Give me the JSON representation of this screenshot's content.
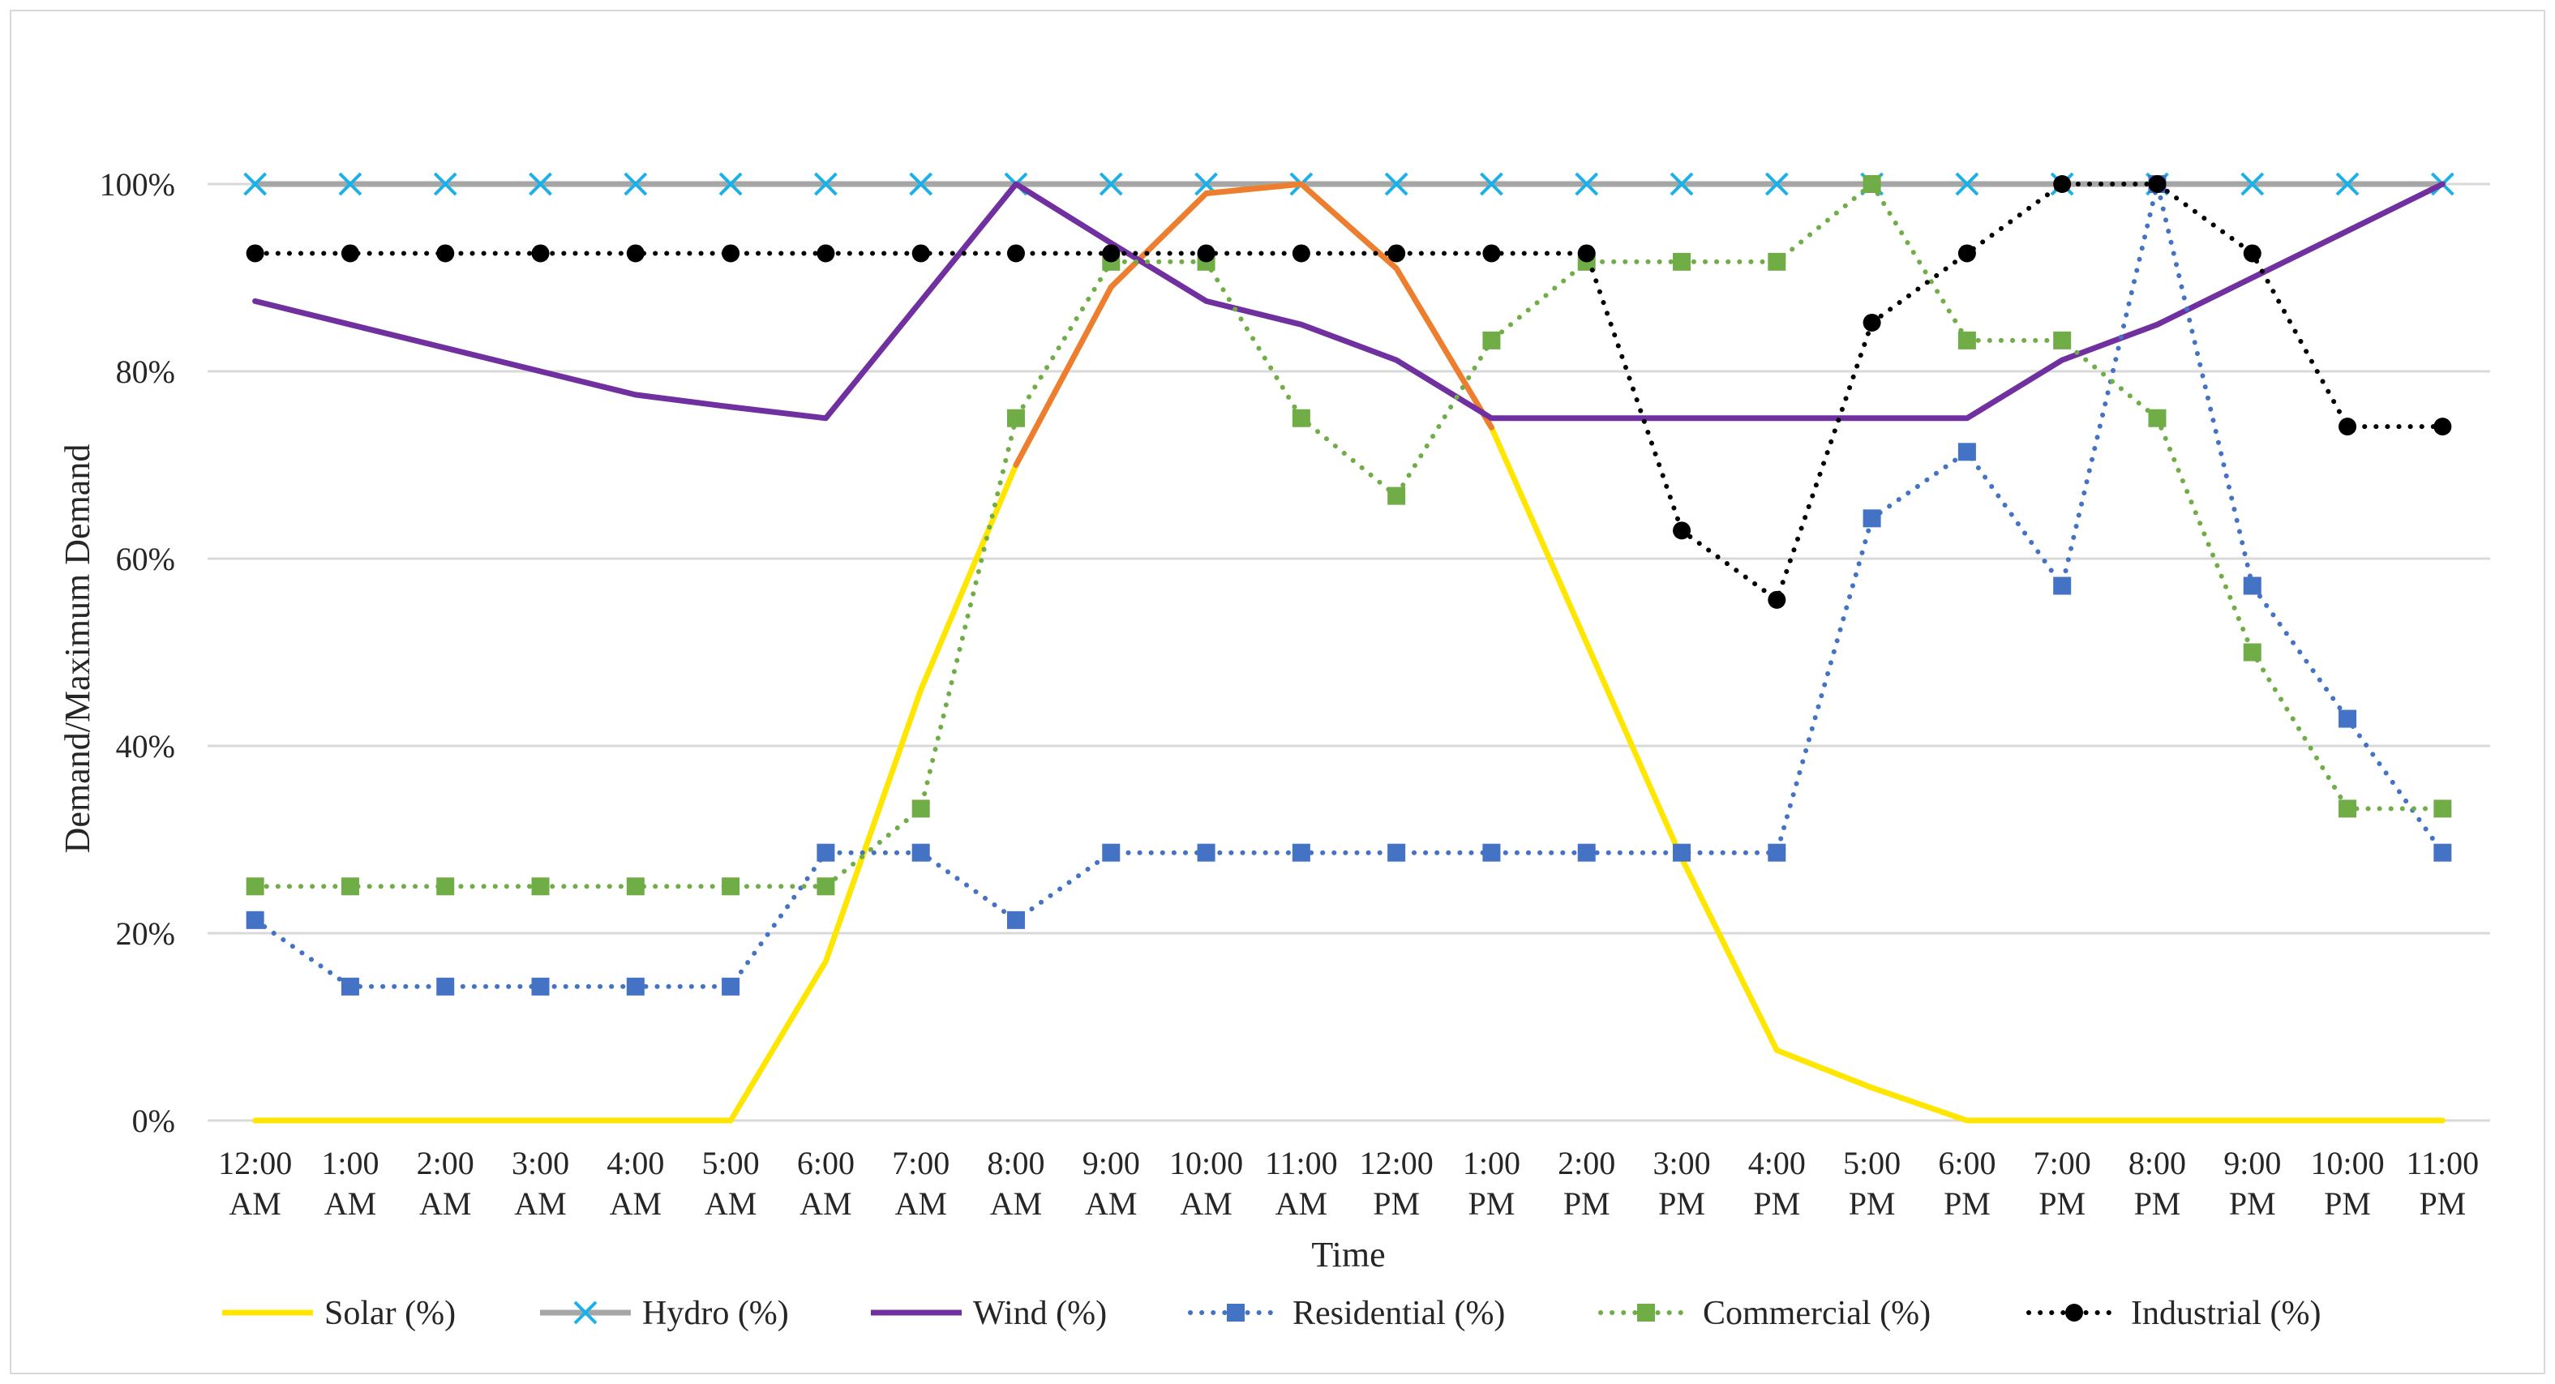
{
  "chart_data": {
    "type": "line",
    "title": "",
    "xlabel": "Time",
    "ylabel": "Demand/Maximum Demand",
    "ylim": [
      0,
      100
    ],
    "y_ticks": [
      "0%",
      "20%",
      "40%",
      "60%",
      "80%",
      "100%"
    ],
    "y_tick_values": [
      0,
      20,
      40,
      60,
      80,
      100
    ],
    "grid": "horizontal",
    "legend_position": "bottom",
    "categories": [
      {
        "time": "12:00",
        "ampm": "AM"
      },
      {
        "time": "1:00",
        "ampm": "AM"
      },
      {
        "time": "2:00",
        "ampm": "AM"
      },
      {
        "time": "3:00",
        "ampm": "AM"
      },
      {
        "time": "4:00",
        "ampm": "AM"
      },
      {
        "time": "5:00",
        "ampm": "AM"
      },
      {
        "time": "6:00",
        "ampm": "AM"
      },
      {
        "time": "7:00",
        "ampm": "AM"
      },
      {
        "time": "8:00",
        "ampm": "AM"
      },
      {
        "time": "9:00",
        "ampm": "AM"
      },
      {
        "time": "10:00",
        "ampm": "AM"
      },
      {
        "time": "11:00",
        "ampm": "AM"
      },
      {
        "time": "12:00",
        "ampm": "PM"
      },
      {
        "time": "1:00",
        "ampm": "PM"
      },
      {
        "time": "2:00",
        "ampm": "PM"
      },
      {
        "time": "3:00",
        "ampm": "PM"
      },
      {
        "time": "4:00",
        "ampm": "PM"
      },
      {
        "time": "5:00",
        "ampm": "PM"
      },
      {
        "time": "6:00",
        "ampm": "PM"
      },
      {
        "time": "7:00",
        "ampm": "PM"
      },
      {
        "time": "8:00",
        "ampm": "PM"
      },
      {
        "time": "9:00",
        "ampm": "PM"
      },
      {
        "time": "10:00",
        "ampm": "PM"
      },
      {
        "time": "11:00",
        "ampm": "PM"
      }
    ],
    "series": [
      {
        "name": "Solar (%)",
        "color": "#ffe600",
        "peak_color": "#ed7d31",
        "marker": "none",
        "dash": "solid",
        "values": [
          0,
          0,
          0,
          0,
          0,
          0,
          17,
          46,
          70,
          89,
          99,
          100,
          91,
          74,
          51,
          28,
          7.5,
          3.5,
          0,
          0,
          0,
          0,
          0,
          0
        ]
      },
      {
        "name": "Hydro (%)",
        "color": "#a6a6a6",
        "marker_color": "#1ab0e8",
        "marker": "x",
        "dash": "solid",
        "values": [
          100,
          100,
          100,
          100,
          100,
          100,
          100,
          100,
          100,
          100,
          100,
          100,
          100,
          100,
          100,
          100,
          100,
          100,
          100,
          100,
          100,
          100,
          100,
          100
        ]
      },
      {
        "name": "Wind (%)",
        "color": "#7030a0",
        "marker": "none",
        "dash": "solid",
        "values": [
          87.5,
          85,
          82.5,
          80,
          77.5,
          76.2,
          75,
          87.5,
          100,
          93.7,
          87.5,
          85,
          81.2,
          75,
          75,
          75,
          75,
          75,
          75,
          81.2,
          85,
          90,
          95,
          100
        ]
      },
      {
        "name": "Residential (%)",
        "color": "#4472c4",
        "marker": "square",
        "dash": "dot",
        "values": [
          21.4,
          14.3,
          14.3,
          14.3,
          14.3,
          14.3,
          28.6,
          28.6,
          21.4,
          28.6,
          28.6,
          28.6,
          28.6,
          28.6,
          28.6,
          28.6,
          28.6,
          64.3,
          71.4,
          57.1,
          100,
          57.1,
          42.9,
          28.6
        ]
      },
      {
        "name": "Commercial (%)",
        "color": "#70ad47",
        "marker": "square",
        "dash": "dot",
        "values": [
          25,
          25,
          25,
          25,
          25,
          25,
          25,
          33.3,
          75,
          91.7,
          91.7,
          75,
          66.7,
          83.3,
          91.7,
          91.7,
          91.7,
          100,
          83.3,
          83.3,
          75,
          50,
          33.3,
          33.3
        ]
      },
      {
        "name": "Industrial (%)",
        "color": "#000000",
        "marker": "circle",
        "dash": "dot",
        "values": [
          92.6,
          92.6,
          92.6,
          92.6,
          92.6,
          92.6,
          92.6,
          92.6,
          92.6,
          92.6,
          92.6,
          92.6,
          92.6,
          92.6,
          92.6,
          63,
          55.6,
          85.2,
          92.6,
          100,
          100,
          92.6,
          74.1,
          74.1
        ]
      }
    ]
  }
}
